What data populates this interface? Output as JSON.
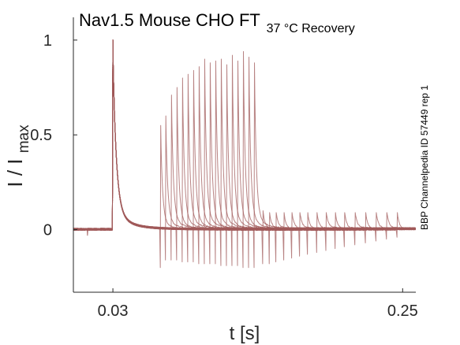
{
  "chart_data": {
    "type": "line",
    "title_main": "Nav1.5  Mouse  CHO FT",
    "title_sub": "37 °C  Recovery",
    "xlabel_main": "t [s]",
    "ylabel_main": "I / I",
    "ylabel_sub": "max",
    "annotation": "BBP Channelpedia ID 57449 rep 1",
    "xlim": [
      0.0,
      0.26
    ],
    "ylim": [
      -0.33,
      1.12
    ],
    "x_ticks": [
      {
        "value": 0.03,
        "label": "0.03"
      },
      {
        "value": 0.25,
        "label": "0.25"
      }
    ],
    "y_ticks": [
      {
        "value": 0,
        "label": "0"
      },
      {
        "value": 0.5,
        "label": "0.5"
      },
      {
        "value": 1,
        "label": "1"
      }
    ],
    "grid": false,
    "line_color": "#a05a5a",
    "first_pulse": {
      "t": 0.03,
      "peak": 1.0,
      "decay": 0.0025,
      "tail": 0.04
    },
    "recovery_pulses": [
      {
        "t": 0.0663,
        "peak": 0.55,
        "dip": -0.2
      },
      {
        "t": 0.0702,
        "peak": 0.6,
        "dip": -0.16
      },
      {
        "t": 0.0745,
        "peak": 0.71,
        "dip": -0.16
      },
      {
        "t": 0.0787,
        "peak": 0.75,
        "dip": -0.16
      },
      {
        "t": 0.0829,
        "peak": 0.8,
        "dip": -0.17
      },
      {
        "t": 0.0871,
        "peak": 0.82,
        "dip": -0.17
      },
      {
        "t": 0.0913,
        "peak": 0.84,
        "dip": -0.17
      },
      {
        "t": 0.0955,
        "peak": 0.86,
        "dip": -0.18
      },
      {
        "t": 0.0997,
        "peak": 0.9,
        "dip": -0.18
      },
      {
        "t": 0.1039,
        "peak": 0.88,
        "dip": -0.18
      },
      {
        "t": 0.1081,
        "peak": 0.89,
        "dip": -0.18
      },
      {
        "t": 0.1123,
        "peak": 0.9,
        "dip": -0.19
      },
      {
        "t": 0.1165,
        "peak": 0.87,
        "dip": -0.19
      },
      {
        "t": 0.1207,
        "peak": 0.92,
        "dip": -0.19
      },
      {
        "t": 0.1249,
        "peak": 0.89,
        "dip": -0.19
      },
      {
        "t": 0.1291,
        "peak": 0.94,
        "dip": -0.2
      },
      {
        "t": 0.1333,
        "peak": 0.91,
        "dip": -0.2
      },
      {
        "t": 0.1375,
        "peak": 0.88,
        "dip": -0.2
      }
    ],
    "late_spikes": [
      {
        "t": 0.144,
        "peak": 0.1,
        "dip": -0.18
      },
      {
        "t": 0.149,
        "peak": 0.09,
        "dip": -0.18
      },
      {
        "t": 0.154,
        "peak": 0.09,
        "dip": -0.17
      },
      {
        "t": 0.16,
        "peak": 0.09,
        "dip": -0.16
      },
      {
        "t": 0.166,
        "peak": 0.09,
        "dip": -0.15
      },
      {
        "t": 0.172,
        "peak": 0.09,
        "dip": -0.14
      },
      {
        "t": 0.178,
        "peak": 0.09,
        "dip": -0.13
      },
      {
        "t": 0.185,
        "peak": 0.09,
        "dip": -0.12
      },
      {
        "t": 0.192,
        "peak": 0.09,
        "dip": -0.11
      },
      {
        "t": 0.199,
        "peak": 0.09,
        "dip": -0.1
      },
      {
        "t": 0.206,
        "peak": 0.09,
        "dip": -0.09
      },
      {
        "t": 0.214,
        "peak": 0.09,
        "dip": -0.08
      },
      {
        "t": 0.222,
        "peak": 0.09,
        "dip": -0.07
      },
      {
        "t": 0.23,
        "peak": 0.09,
        "dip": -0.06
      },
      {
        "t": 0.238,
        "peak": 0.09,
        "dip": -0.05
      },
      {
        "t": 0.246,
        "peak": 0.09,
        "dip": -0.04
      }
    ]
  }
}
